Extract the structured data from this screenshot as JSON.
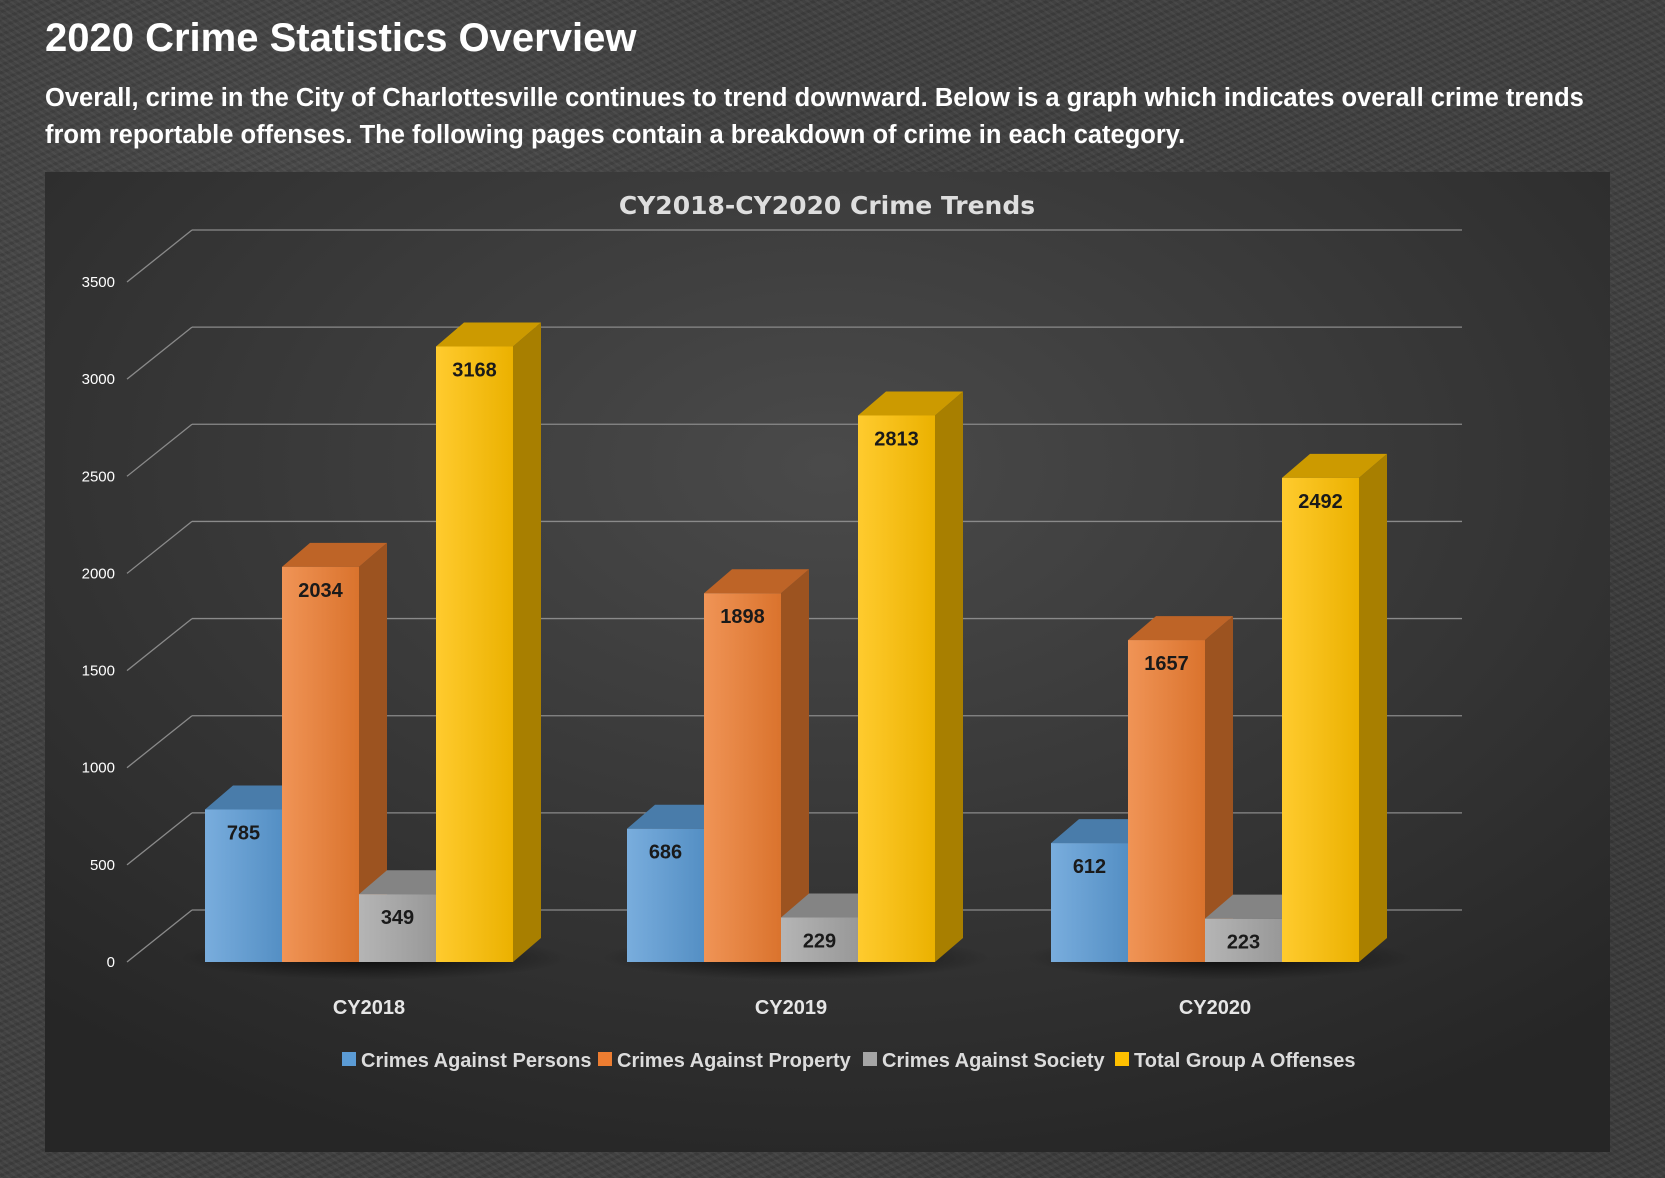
{
  "page": {
    "title": "2020 Crime Statistics Overview",
    "intro": "Overall, crime in the City of Charlottesville continues to trend downward. Below is a graph which indicates overall crime trends from reportable offenses. The following pages contain a breakdown of crime in each category."
  },
  "chart_data": {
    "type": "bar",
    "style": "3d-clustered-column",
    "title": "CY2018-CY2020 Crime Trends",
    "xlabel": "",
    "ylabel": "",
    "categories": [
      "CY2018",
      "CY2019",
      "CY2020"
    ],
    "ylim": [
      0,
      3500
    ],
    "yticks": [
      0,
      500,
      1000,
      1500,
      2000,
      2500,
      3000,
      3500
    ],
    "grid": true,
    "legend_position": "bottom",
    "data_labels": true,
    "series": [
      {
        "name": "Crimes Against Persons",
        "values": [
          785,
          686,
          612
        ],
        "color": "#5b9bd5"
      },
      {
        "name": "Crimes Against Property",
        "values": [
          2034,
          1898,
          1657
        ],
        "color": "#ed7d31"
      },
      {
        "name": "Crimes Against Society",
        "values": [
          349,
          229,
          223
        ],
        "color": "#a5a5a5"
      },
      {
        "name": "Total Group A Offenses",
        "values": [
          3168,
          2813,
          2492
        ],
        "color": "#ffc000"
      }
    ]
  }
}
